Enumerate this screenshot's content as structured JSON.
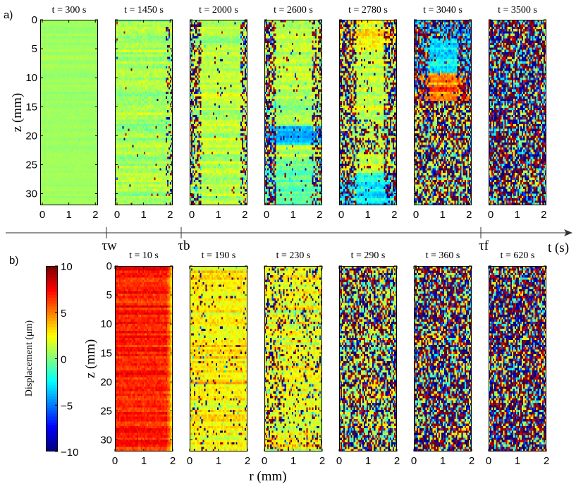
{
  "panel_labels": [
    "a)",
    "b)"
  ],
  "chart_data": [
    {
      "type": "heatmap",
      "row": "a",
      "ylabel": "z (mm)",
      "xlim": [
        -0.08,
        2.1
      ],
      "ylim": [
        32,
        0
      ],
      "xticks": [
        "0",
        "1",
        "2"
      ],
      "yticks": [
        "0",
        "5",
        "10",
        "15",
        "20",
        "25",
        "30"
      ],
      "panels": [
        {
          "title": "t = 300 s"
        },
        {
          "title": "t = 1450 s"
        },
        {
          "title": "t = 2000 s"
        },
        {
          "title": "t = 2600 s"
        },
        {
          "title": "t = 2780 s"
        },
        {
          "title": "t = 3040 s"
        },
        {
          "title": "t = 3500 s"
        }
      ]
    },
    {
      "type": "heatmap",
      "row": "b",
      "ylabel": "z (mm)",
      "xlabel": "r (mm)",
      "xlim": [
        0,
        2
      ],
      "ylim": [
        32,
        0
      ],
      "xticks": [
        "0",
        "1",
        "2"
      ],
      "yticks": [
        "0",
        "5",
        "10",
        "15",
        "20",
        "25",
        "30"
      ],
      "panels": [
        {
          "title": "t = 10 s"
        },
        {
          "title": "t = 190 s"
        },
        {
          "title": "t = 230 s"
        },
        {
          "title": "t = 290 s"
        },
        {
          "title": "t = 360 s"
        },
        {
          "title": "t = 620 s"
        }
      ]
    }
  ],
  "colorbar": {
    "label": "Displacement (μm)",
    "range": [
      -10,
      10
    ],
    "ticks": [
      "10",
      "5",
      "0",
      "−5",
      "−10"
    ],
    "colormap": "jet"
  },
  "timeline": {
    "label": "t (s)",
    "markers": [
      "τw",
      "τb",
      "τf"
    ]
  }
}
